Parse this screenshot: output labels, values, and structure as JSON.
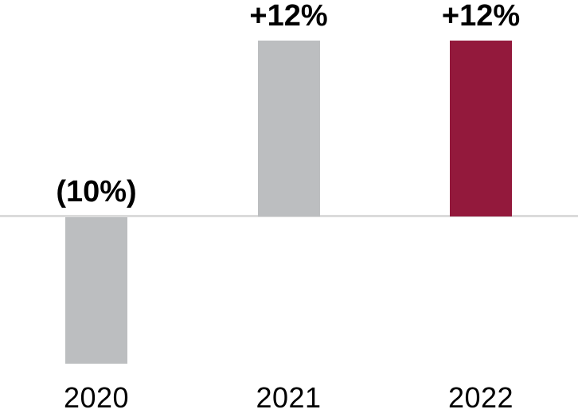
{
  "chart_data": {
    "type": "bar",
    "categories": [
      "2020",
      "2021",
      "2022"
    ],
    "values": [
      -10,
      12,
      12
    ],
    "value_labels": [
      "(10%)",
      "+12%",
      "+12%"
    ],
    "bar_colors": [
      "#BCBEC0",
      "#BCBEC0",
      "#93193C"
    ],
    "title": "",
    "xlabel": "",
    "ylabel": "",
    "ylim": [
      -10,
      12
    ],
    "baseline": 0,
    "grid": false,
    "legend": false,
    "axis_line_color": "#DBDBDB",
    "label_color": "#000000"
  }
}
